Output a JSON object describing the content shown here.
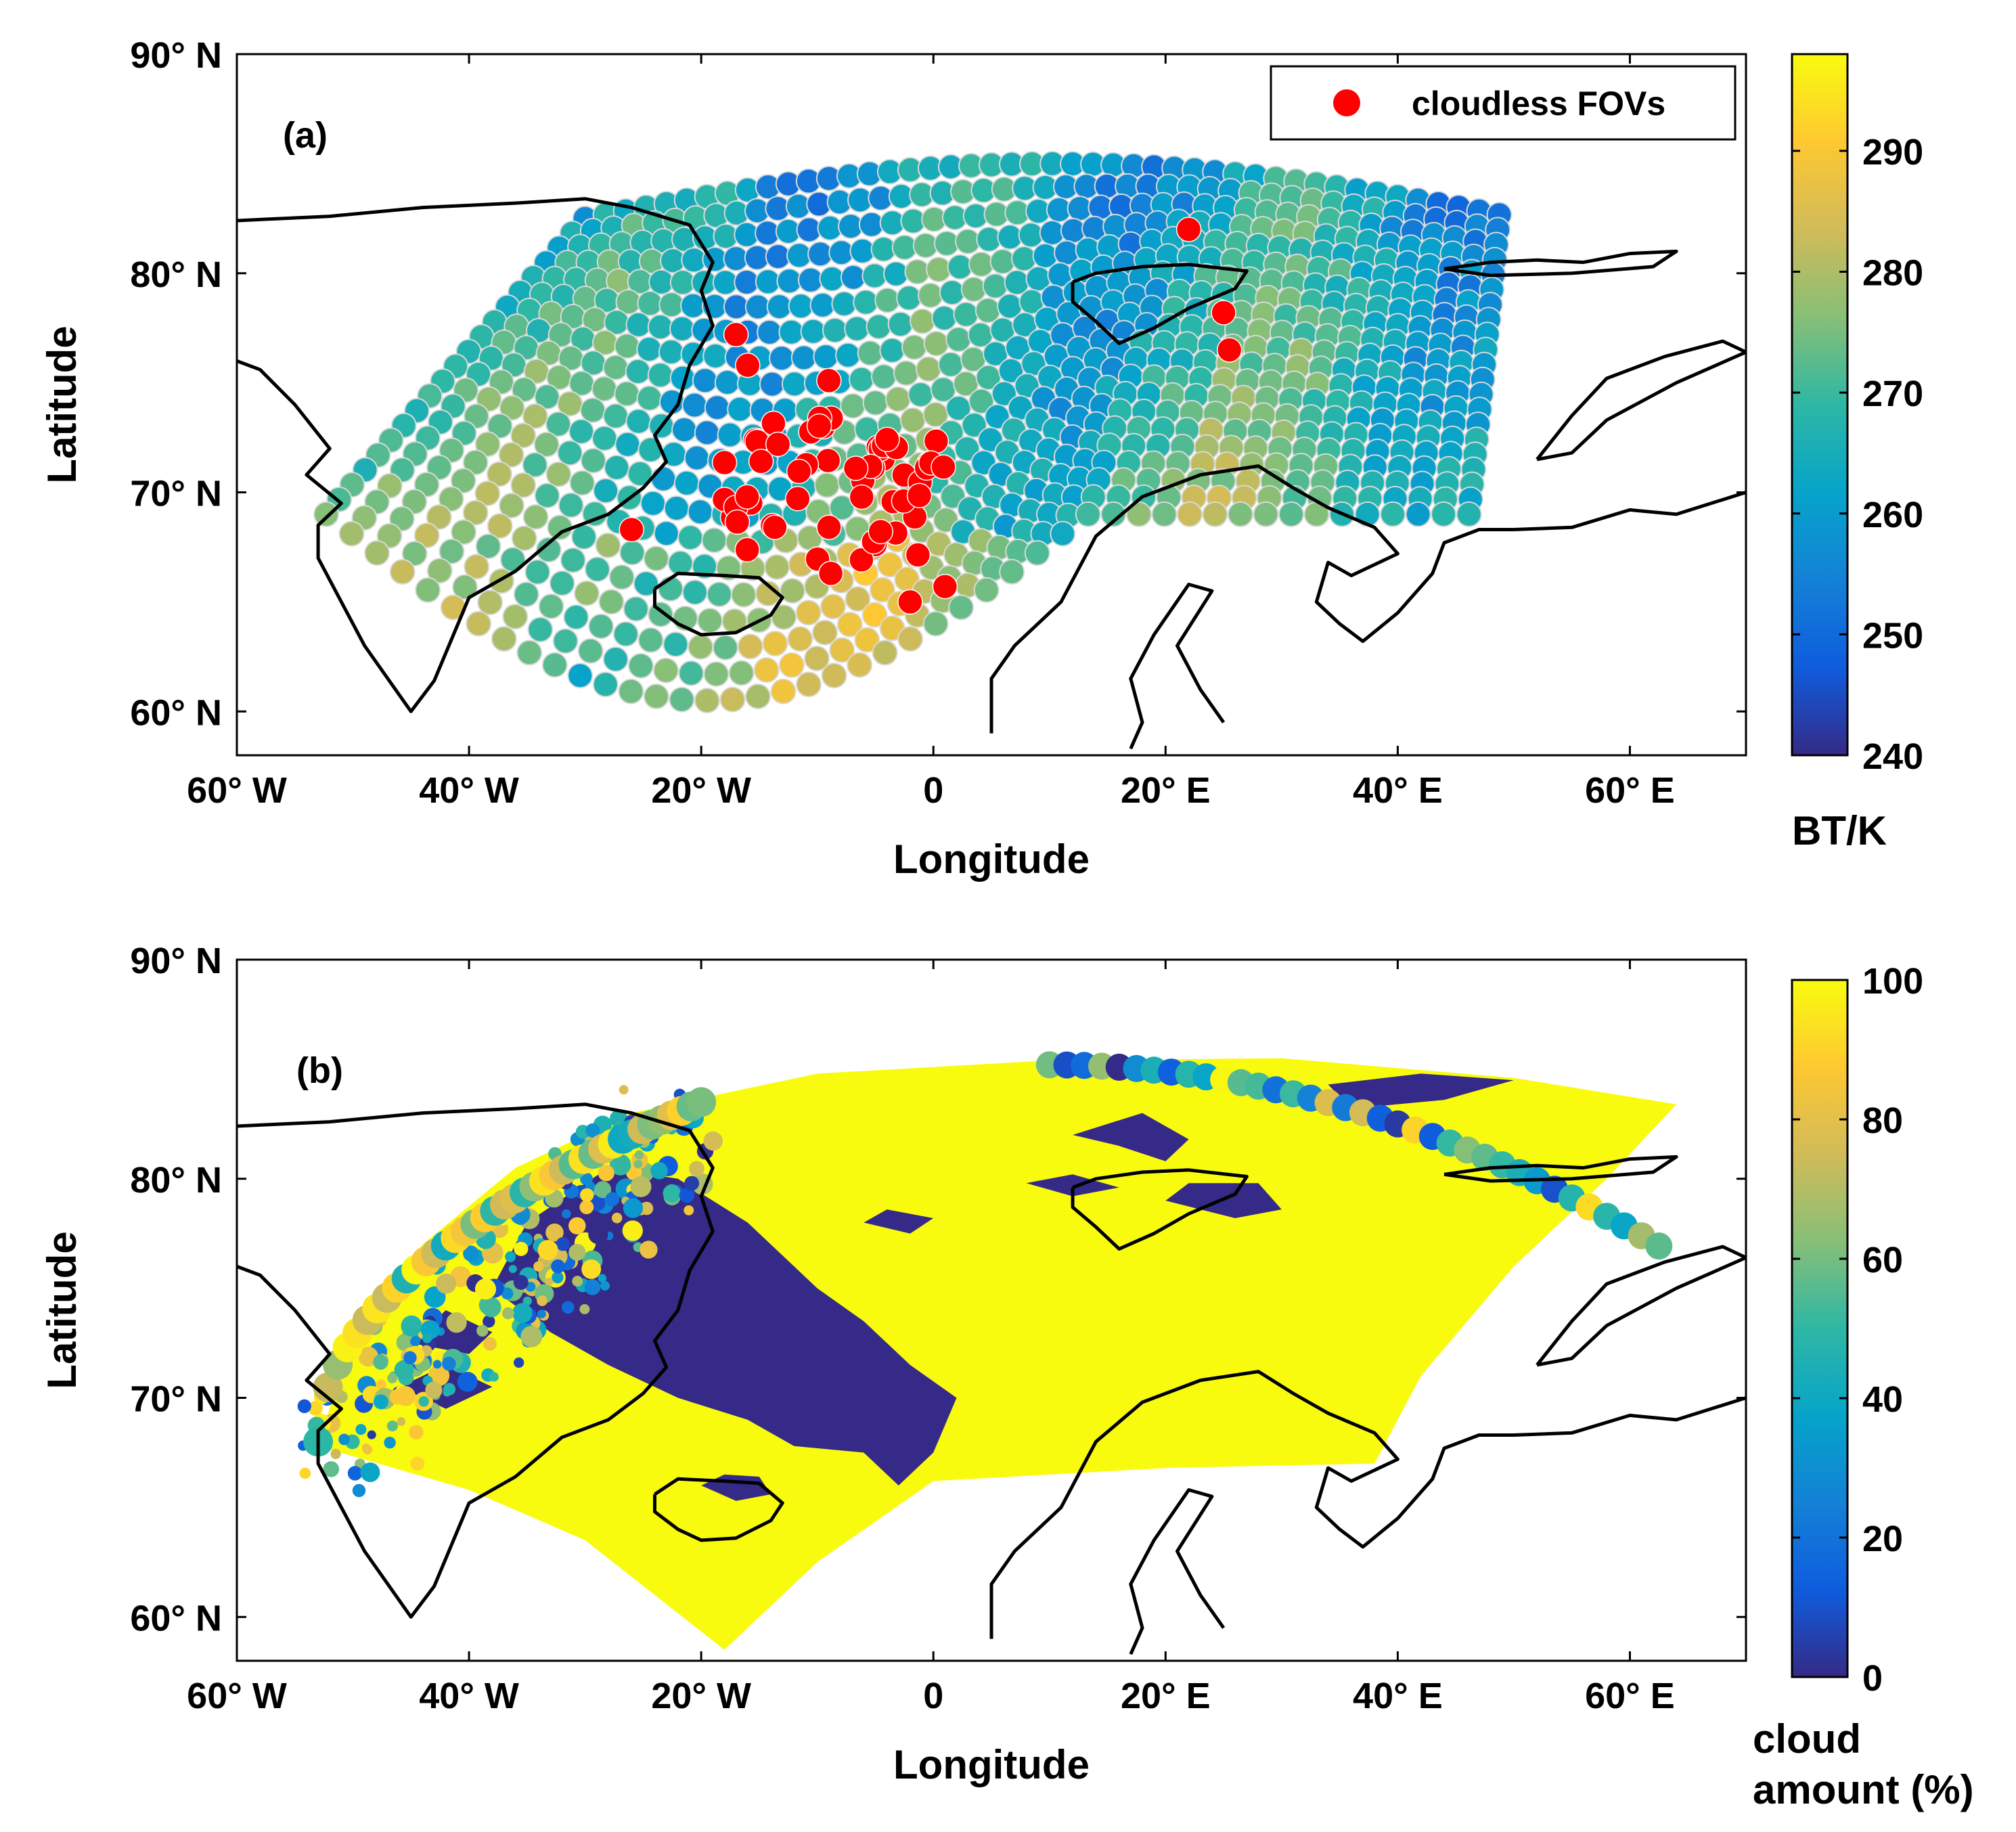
{
  "chart_data": [
    {
      "type": "scatter",
      "panel_label": "(a)",
      "xlabel": "Longitude",
      "ylabel": "Latitude",
      "xlim": [
        -60,
        70
      ],
      "ylim": [
        58,
        90
      ],
      "x_ticks": [
        {
          "value": -60,
          "label": "60° W"
        },
        {
          "value": -40,
          "label": "40° W"
        },
        {
          "value": -20,
          "label": "20° W"
        },
        {
          "value": 0,
          "label": "0"
        },
        {
          "value": 20,
          "label": "20° E"
        },
        {
          "value": 40,
          "label": "40° E"
        },
        {
          "value": 60,
          "label": "60° E"
        }
      ],
      "y_ticks": [
        {
          "value": 60,
          "label": "60° N"
        },
        {
          "value": 70,
          "label": "70° N"
        },
        {
          "value": 80,
          "label": "80° N"
        },
        {
          "value": 90,
          "label": "90° N"
        }
      ],
      "colorbar": {
        "range": [
          240,
          298
        ],
        "ticks": [
          240,
          250,
          260,
          270,
          280,
          290
        ],
        "title": "BT/K",
        "colormap": "parula"
      },
      "legend": {
        "entries": [
          "cloudless FOVs"
        ],
        "position": "top-right",
        "marker_color": "#ff0000"
      },
      "series_note": "brightness-temperature FOV swath with red cloudless FOVs"
    },
    {
      "type": "heatmap",
      "panel_label": "(b)",
      "xlabel": "Longitude",
      "ylabel": "Latitude",
      "xlim": [
        -60,
        70
      ],
      "ylim": [
        58,
        90
      ],
      "x_ticks": [
        {
          "value": -60,
          "label": "60° W"
        },
        {
          "value": -40,
          "label": "40° W"
        },
        {
          "value": -20,
          "label": "20° W"
        },
        {
          "value": 0,
          "label": "0"
        },
        {
          "value": 20,
          "label": "20° E"
        },
        {
          "value": 40,
          "label": "40° E"
        },
        {
          "value": 60,
          "label": "60° E"
        }
      ],
      "y_ticks": [
        {
          "value": 60,
          "label": "60° N"
        },
        {
          "value": 70,
          "label": "70° N"
        },
        {
          "value": 80,
          "label": "80° N"
        },
        {
          "value": 90,
          "label": "90° N"
        }
      ],
      "colorbar": {
        "range": [
          0,
          100
        ],
        "ticks": [
          0,
          20,
          40,
          60,
          80,
          100
        ],
        "title_lines": [
          "cloud",
          "amount (%)"
        ],
        "colormap": "parula"
      }
    }
  ],
  "colors": {
    "parula": [
      "#352a87",
      "#0f5cdd",
      "#1481d6",
      "#06a4ca",
      "#2eb7a4",
      "#87bf77",
      "#d1bb59",
      "#fec832",
      "#f9fb0e"
    ],
    "cloudless": "#ff0000",
    "coast": "#000000"
  }
}
